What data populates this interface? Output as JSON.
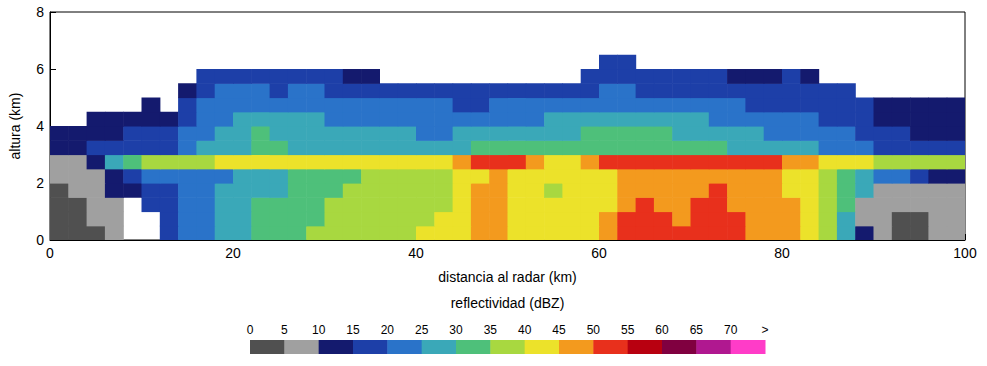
{
  "chart_data": {
    "type": "heatmap",
    "xlabel": "distancia al radar (km)",
    "ylabel": "altura (km)",
    "xlim": [
      0,
      100
    ],
    "xticks": [
      0,
      20,
      40,
      60,
      80,
      100
    ],
    "ylim": [
      0,
      8
    ],
    "yticks": [
      0,
      2,
      4,
      6,
      8
    ],
    "grid": false,
    "x": [
      1,
      3,
      5,
      7,
      9,
      11,
      13,
      15,
      17,
      19,
      21,
      23,
      25,
      27,
      29,
      31,
      33,
      35,
      37,
      39,
      41,
      43,
      45,
      47,
      49,
      51,
      53,
      55,
      57,
      59,
      61,
      63,
      65,
      67,
      69,
      71,
      73,
      75,
      77,
      79,
      81,
      83,
      85,
      87,
      89,
      91,
      93,
      95,
      97,
      99
    ],
    "y": [
      0.25,
      0.75,
      1.25,
      1.75,
      2.25,
      2.75,
      3.25,
      3.75,
      4.25,
      4.75,
      5.25,
      5.75,
      6.25
    ],
    "values": [
      [
        2,
        3,
        4,
        6,
        null,
        null,
        15,
        20,
        24,
        27,
        29,
        31,
        32,
        34,
        35,
        37,
        38,
        38,
        39,
        39,
        40,
        41,
        44,
        48,
        49,
        44,
        42,
        41,
        42,
        43,
        46,
        51,
        52,
        51,
        50,
        52,
        53,
        51,
        49,
        49,
        47,
        44,
        37,
        26,
        10,
        5,
        4,
        4,
        5,
        6
      ],
      [
        2,
        3,
        5,
        8,
        null,
        null,
        16,
        20,
        23,
        26,
        28,
        30,
        31,
        33,
        34,
        36,
        37,
        38,
        38,
        38,
        39,
        40,
        42,
        47,
        48,
        43,
        41,
        40,
        41,
        42,
        45,
        50,
        51,
        50,
        49,
        51,
        52,
        50,
        48,
        48,
        46,
        43,
        36,
        28,
        6,
        5,
        4,
        4,
        5,
        6
      ],
      [
        3,
        4,
        6,
        8,
        null,
        16,
        18,
        20,
        22,
        25,
        28,
        30,
        30,
        32,
        33,
        35,
        36,
        37,
        38,
        38,
        38,
        39,
        41,
        46,
        47,
        42,
        40,
        40,
        40,
        41,
        44,
        48,
        50,
        49,
        48,
        50,
        51,
        49,
        47,
        47,
        45,
        42,
        36,
        30,
        8,
        6,
        5,
        5,
        6,
        7
      ],
      [
        4,
        5,
        7,
        10,
        14,
        18,
        19,
        20,
        22,
        25,
        27,
        29,
        29,
        31,
        33,
        34,
        35,
        37,
        37,
        37,
        38,
        38,
        40,
        45,
        46,
        41,
        40,
        39,
        40,
        40,
        43,
        47,
        49,
        48,
        47,
        49,
        50,
        48,
        46,
        47,
        44,
        42,
        37,
        32,
        26,
        8,
        6,
        6,
        7,
        8
      ],
      [
        5,
        6,
        8,
        14,
        18,
        20,
        20,
        20,
        22,
        24,
        26,
        28,
        28,
        30,
        32,
        33,
        34,
        36,
        37,
        37,
        38,
        38,
        40,
        44,
        46,
        42,
        40,
        40,
        40,
        40,
        42,
        46,
        48,
        47,
        46,
        48,
        49,
        47,
        45,
        46,
        44,
        42,
        38,
        34,
        28,
        24,
        20,
        16,
        12,
        10
      ],
      [
        8,
        8,
        12,
        25,
        32,
        35,
        37,
        38,
        39,
        40,
        40,
        41,
        40,
        41,
        40,
        40,
        41,
        41,
        41,
        42,
        42,
        43,
        48,
        52,
        52,
        50,
        48,
        44,
        43,
        46,
        53,
        54,
        54,
        52,
        53,
        54,
        54,
        52,
        50,
        52,
        48,
        45,
        42,
        40,
        40,
        39,
        37,
        36,
        38,
        38
      ],
      [
        13,
        14,
        15,
        16,
        17,
        18,
        19,
        22,
        25,
        27,
        29,
        30,
        30,
        29,
        29,
        28,
        28,
        28,
        28,
        28,
        28,
        28,
        29,
        30,
        30,
        30,
        30,
        31,
        32,
        33,
        33,
        33,
        33,
        32,
        32,
        31,
        30,
        29,
        28,
        27,
        26,
        25,
        24,
        22,
        20,
        18,
        17,
        16,
        15,
        15
      ],
      [
        12,
        13,
        14,
        14,
        15,
        15,
        16,
        20,
        24,
        26,
        28,
        30,
        29,
        28,
        27,
        26,
        25,
        25,
        25,
        25,
        24,
        24,
        25,
        26,
        26,
        27,
        27,
        28,
        29,
        31,
        31,
        31,
        31,
        30,
        29,
        28,
        27,
        26,
        25,
        24,
        23,
        22,
        21,
        20,
        18,
        16,
        15,
        14,
        13,
        13
      ],
      [
        null,
        null,
        12,
        13,
        13,
        13,
        14,
        18,
        22,
        24,
        25,
        27,
        26,
        26,
        25,
        24,
        23,
        23,
        23,
        22,
        22,
        22,
        22,
        23,
        24,
        24,
        24,
        25,
        27,
        28,
        28,
        29,
        28,
        27,
        26,
        25,
        24,
        23,
        22,
        22,
        21,
        20,
        19,
        18,
        16,
        14,
        13,
        13,
        12,
        12
      ],
      [
        null,
        null,
        null,
        null,
        null,
        12,
        null,
        16,
        20,
        22,
        22,
        22,
        21,
        22,
        22,
        21,
        21,
        20,
        20,
        20,
        20,
        20,
        19,
        19,
        20,
        21,
        21,
        21,
        22,
        24,
        24,
        23,
        22,
        22,
        21,
        21,
        20,
        20,
        19,
        19,
        19,
        18,
        17,
        16,
        15,
        13,
        12,
        12,
        12,
        12
      ],
      [
        null,
        null,
        null,
        null,
        null,
        null,
        null,
        14,
        18,
        20,
        20,
        20,
        19,
        20,
        20,
        19,
        18,
        18,
        17,
        17,
        17,
        16,
        16,
        17,
        17,
        17,
        16,
        16,
        17,
        19,
        20,
        20,
        19,
        19,
        18,
        18,
        17,
        17,
        17,
        17,
        18,
        17,
        16,
        15,
        null,
        null,
        null,
        null,
        null,
        null
      ],
      [
        null,
        null,
        null,
        null,
        null,
        null,
        null,
        null,
        15,
        16,
        17,
        18,
        17,
        16,
        15,
        15,
        14,
        14,
        null,
        null,
        null,
        null,
        null,
        null,
        null,
        null,
        null,
        null,
        null,
        16,
        18,
        18,
        17,
        16,
        16,
        15,
        15,
        14,
        14,
        14,
        15,
        14,
        null,
        null,
        null,
        null,
        null,
        null,
        null,
        null
      ],
      [
        null,
        null,
        null,
        null,
        null,
        null,
        null,
        null,
        null,
        null,
        null,
        null,
        null,
        null,
        null,
        null,
        null,
        null,
        null,
        null,
        null,
        null,
        null,
        null,
        null,
        null,
        null,
        null,
        null,
        null,
        15,
        15,
        null,
        null,
        null,
        null,
        null,
        null,
        null,
        null,
        null,
        null,
        null,
        null,
        null,
        null,
        null,
        null,
        null,
        null
      ]
    ],
    "colorbar": {
      "label": "reflectividad (dBZ)",
      "range": [
        0,
        75
      ],
      "ticks": [
        0,
        5,
        10,
        15,
        20,
        25,
        30,
        35,
        40,
        45,
        50,
        55,
        60,
        65,
        70,
        {
          "value": 75,
          "label": ">"
        }
      ],
      "colors": [
        "#505050",
        "#a0a0a0",
        "#141a6e",
        "#1d3fa8",
        "#2a73c9",
        "#3aa8b8",
        "#4ec07a",
        "#a8d840",
        "#ece22a",
        "#f39a1e",
        "#e8301c",
        "#b80010",
        "#800040",
        "#b01890",
        "#ff3cc8"
      ]
    }
  }
}
